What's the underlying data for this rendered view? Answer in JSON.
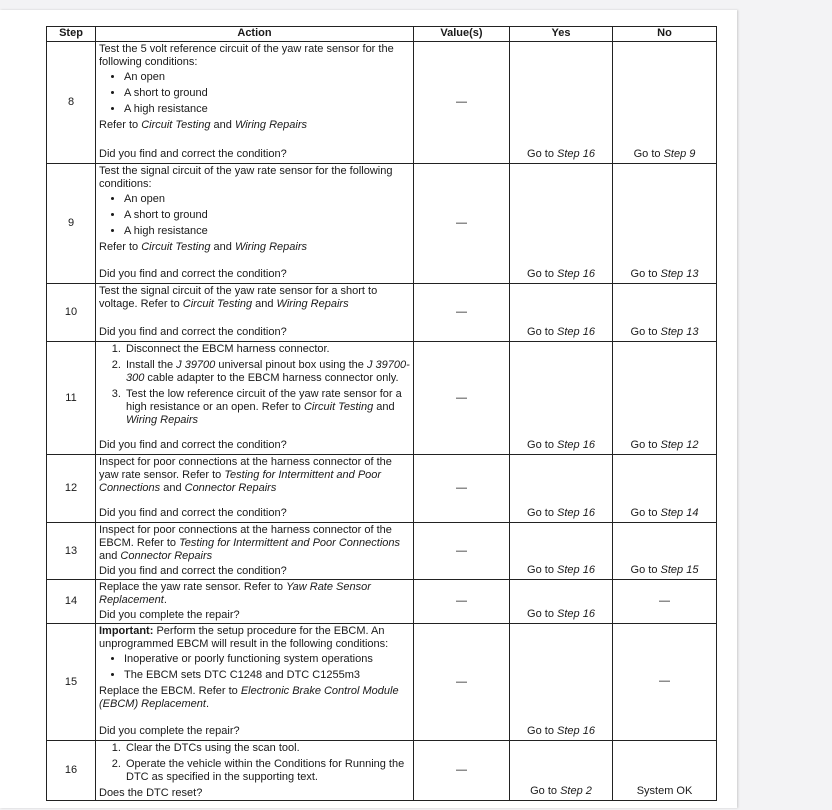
{
  "headers": {
    "step": "Step",
    "action": "Action",
    "values": "Value(s)",
    "yes": "Yes",
    "no": "No"
  },
  "rows": [
    {
      "step": "8",
      "action": [
        {
          "type": "p",
          "segs": [
            [
              "Test the 5 volt reference circuit of the yaw rate sensor for the following conditions:",
              ""
            ]
          ]
        },
        {
          "type": "ul",
          "items": [
            [
              [
                "An open",
                ""
              ]
            ],
            [
              [
                "A short to ground",
                ""
              ]
            ],
            [
              [
                "A high resistance",
                ""
              ]
            ]
          ]
        },
        {
          "type": "p",
          "segs": [
            [
              "Refer to ",
              ""
            ],
            [
              "Circuit Testing",
              "i"
            ],
            [
              " and ",
              ""
            ],
            [
              "Wiring Repairs",
              "i"
            ]
          ]
        }
      ],
      "question": "Did you find and correct the condition?",
      "value": "—",
      "yes": [
        [
          "Go to ",
          ""
        ],
        [
          "Step 16",
          "i"
        ]
      ],
      "no": [
        [
          "Go to ",
          ""
        ],
        [
          "Step 9",
          "i"
        ]
      ]
    },
    {
      "step": "9",
      "action": [
        {
          "type": "p",
          "segs": [
            [
              "Test the signal circuit of the yaw rate sensor for the following conditions:",
              ""
            ]
          ]
        },
        {
          "type": "ul",
          "items": [
            [
              [
                "An open",
                ""
              ]
            ],
            [
              [
                "A short to ground",
                ""
              ]
            ],
            [
              [
                "A high resistance",
                ""
              ]
            ]
          ]
        },
        {
          "type": "p",
          "segs": [
            [
              "Refer to ",
              ""
            ],
            [
              "Circuit Testing",
              "i"
            ],
            [
              " and ",
              ""
            ],
            [
              "Wiring Repairs",
              "i"
            ]
          ]
        }
      ],
      "question": "Did you find and correct the condition?",
      "value": "—",
      "yes": [
        [
          "Go to ",
          ""
        ],
        [
          "Step 16",
          "i"
        ]
      ],
      "no": [
        [
          "Go to ",
          ""
        ],
        [
          "Step 13",
          "i"
        ]
      ]
    },
    {
      "step": "10",
      "action": [
        {
          "type": "p",
          "segs": [
            [
              "Test the signal circuit of the yaw rate sensor for a short to voltage. Refer to ",
              ""
            ],
            [
              "Circuit Testing",
              "i"
            ],
            [
              " and ",
              ""
            ],
            [
              "Wiring Repairs",
              "i"
            ]
          ]
        }
      ],
      "question": "Did you find and correct the condition?",
      "value": "—",
      "yes": [
        [
          "Go to ",
          ""
        ],
        [
          "Step 16",
          "i"
        ]
      ],
      "no": [
        [
          "Go to ",
          ""
        ],
        [
          "Step 13",
          "i"
        ]
      ]
    },
    {
      "step": "11",
      "action": [
        {
          "type": "ol",
          "items": [
            [
              [
                "Disconnect the EBCM harness connector.",
                ""
              ]
            ],
            [
              [
                "Install the ",
                ""
              ],
              [
                "J 39700",
                "i"
              ],
              [
                " universal pinout box using the ",
                ""
              ],
              [
                "J 39700-300",
                "i"
              ],
              [
                " cable adapter to the EBCM harness connector only.",
                ""
              ]
            ],
            [
              [
                "Test the low reference circuit of the yaw rate sensor for a high resistance or an open. Refer to ",
                ""
              ],
              [
                "Circuit Testing",
                "i"
              ],
              [
                " and ",
                ""
              ],
              [
                "Wiring Repairs",
                "i"
              ]
            ]
          ]
        }
      ],
      "question": "Did you find and correct the condition?",
      "value": "—",
      "yes": [
        [
          "Go to ",
          ""
        ],
        [
          "Step 16",
          "i"
        ]
      ],
      "no": [
        [
          "Go to ",
          ""
        ],
        [
          "Step 12",
          "i"
        ]
      ]
    },
    {
      "step": "12",
      "action": [
        {
          "type": "p",
          "segs": [
            [
              "Inspect for poor connections at the harness connector of the yaw rate sensor. Refer to ",
              ""
            ],
            [
              "Testing for Intermittent and Poor Connections",
              "i"
            ],
            [
              " and ",
              ""
            ],
            [
              "Connector Repairs",
              "i"
            ]
          ]
        }
      ],
      "question": "Did you find and correct the condition?",
      "value": "—",
      "yes": [
        [
          "Go to ",
          ""
        ],
        [
          "Step 16",
          "i"
        ]
      ],
      "no": [
        [
          "Go to ",
          ""
        ],
        [
          "Step 14",
          "i"
        ]
      ]
    },
    {
      "step": "13",
      "action": [
        {
          "type": "p",
          "segs": [
            [
              "Inspect for poor connections at the harness connector of the EBCM. Refer to ",
              ""
            ],
            [
              "Testing for Intermittent and Poor Connections",
              "i"
            ],
            [
              " and ",
              ""
            ],
            [
              "Connector Repairs",
              "i"
            ]
          ]
        }
      ],
      "question": "Did you find and correct the condition?",
      "value": "—",
      "yes": [
        [
          "Go to ",
          ""
        ],
        [
          "Step 16",
          "i"
        ]
      ],
      "no": [
        [
          "Go to ",
          ""
        ],
        [
          "Step 15",
          "i"
        ]
      ]
    },
    {
      "step": "14",
      "action": [
        {
          "type": "p",
          "segs": [
            [
              "Replace the yaw rate sensor. Refer to ",
              ""
            ],
            [
              "Yaw Rate Sensor Replacement",
              "i"
            ],
            [
              ".",
              ""
            ]
          ]
        }
      ],
      "question": "Did you complete the repair?",
      "value": "—",
      "yes": [
        [
          "Go to ",
          ""
        ],
        [
          "Step 16",
          "i"
        ]
      ],
      "no": [
        [
          "—",
          ""
        ]
      ]
    },
    {
      "step": "15",
      "action": [
        {
          "type": "p",
          "segs": [
            [
              "Important:",
              "b"
            ],
            [
              " Perform the setup procedure for the EBCM. An unprogrammed EBCM will result in the following conditions:",
              ""
            ]
          ]
        },
        {
          "type": "ul",
          "items": [
            [
              [
                "Inoperative or poorly functioning system operations",
                ""
              ]
            ],
            [
              [
                "The EBCM sets DTC C1248 and DTC C1255m3",
                ""
              ]
            ]
          ]
        },
        {
          "type": "p",
          "segs": [
            [
              "Replace the EBCM. Refer to ",
              ""
            ],
            [
              "Electronic Brake Control Module (EBCM) Replacement",
              "i"
            ],
            [
              ".",
              ""
            ]
          ]
        }
      ],
      "question": "Did you complete the repair?",
      "value": "—",
      "yes": [
        [
          "Go to ",
          ""
        ],
        [
          "Step 16",
          "i"
        ]
      ],
      "no": [
        [
          "—",
          ""
        ]
      ]
    },
    {
      "step": "16",
      "action": [
        {
          "type": "ol",
          "items": [
            [
              [
                "Clear the DTCs using the scan tool.",
                ""
              ]
            ],
            [
              [
                "Operate the vehicle within the Conditions for Running the DTC as specified in the supporting text.",
                ""
              ]
            ]
          ]
        }
      ],
      "question": "Does the DTC reset?",
      "value": "—",
      "yes": [
        [
          "Go to ",
          ""
        ],
        [
          "Step 2",
          "i"
        ]
      ],
      "no": [
        [
          "System OK",
          ""
        ]
      ]
    }
  ]
}
